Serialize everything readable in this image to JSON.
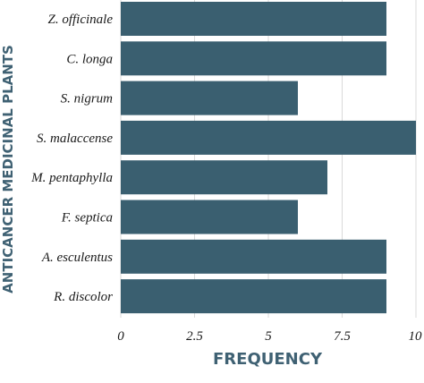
{
  "chart_data": {
    "type": "bar",
    "orientation": "horizontal",
    "categories": [
      "Z. officinale",
      "C. longa",
      "S. nigrum",
      "S. malaccense",
      "M. pentaphylla",
      "F. septica",
      "A. esculentus",
      "R. discolor"
    ],
    "values": [
      9,
      9,
      6,
      10,
      7,
      6,
      9,
      9
    ],
    "xlabel": "FREQUENCY",
    "ylabel": "ANTICANCER MEDICINAL PLANTS",
    "xlim": [
      0,
      10
    ],
    "xticks": [
      0,
      2.5,
      5,
      7.5,
      10
    ],
    "xtick_labels": [
      "0",
      "2.5",
      "5",
      "7.5",
      "10"
    ],
    "grid": "vertical",
    "bar_color": "#3a5f70",
    "axis_title_color": "#3f6173",
    "grid_color": "#d9d9d9"
  }
}
